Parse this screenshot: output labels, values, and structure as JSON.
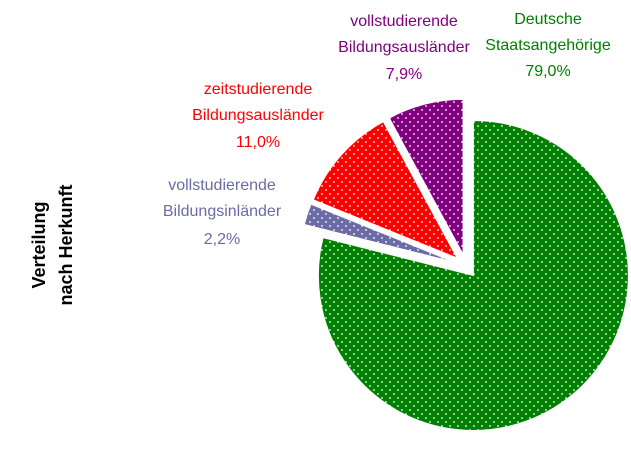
{
  "chart_data": {
    "type": "pie",
    "title": [
      "Verteilung",
      "nach Herkunft"
    ],
    "categories": [
      "Deutsche Staatsangehörige",
      "vollstudierende Bildungsinländer",
      "zeitstudierende Bildungsausländer",
      "vollstudierende Bildungsausländer"
    ],
    "values": [
      79.0,
      2.2,
      11.0,
      7.9
    ],
    "value_labels": [
      "79,0%",
      "2,2%",
      "11,0%",
      "7,9%"
    ],
    "colors": [
      "#008000",
      "#6b6ba6",
      "#ff0000",
      "#800080"
    ]
  }
}
